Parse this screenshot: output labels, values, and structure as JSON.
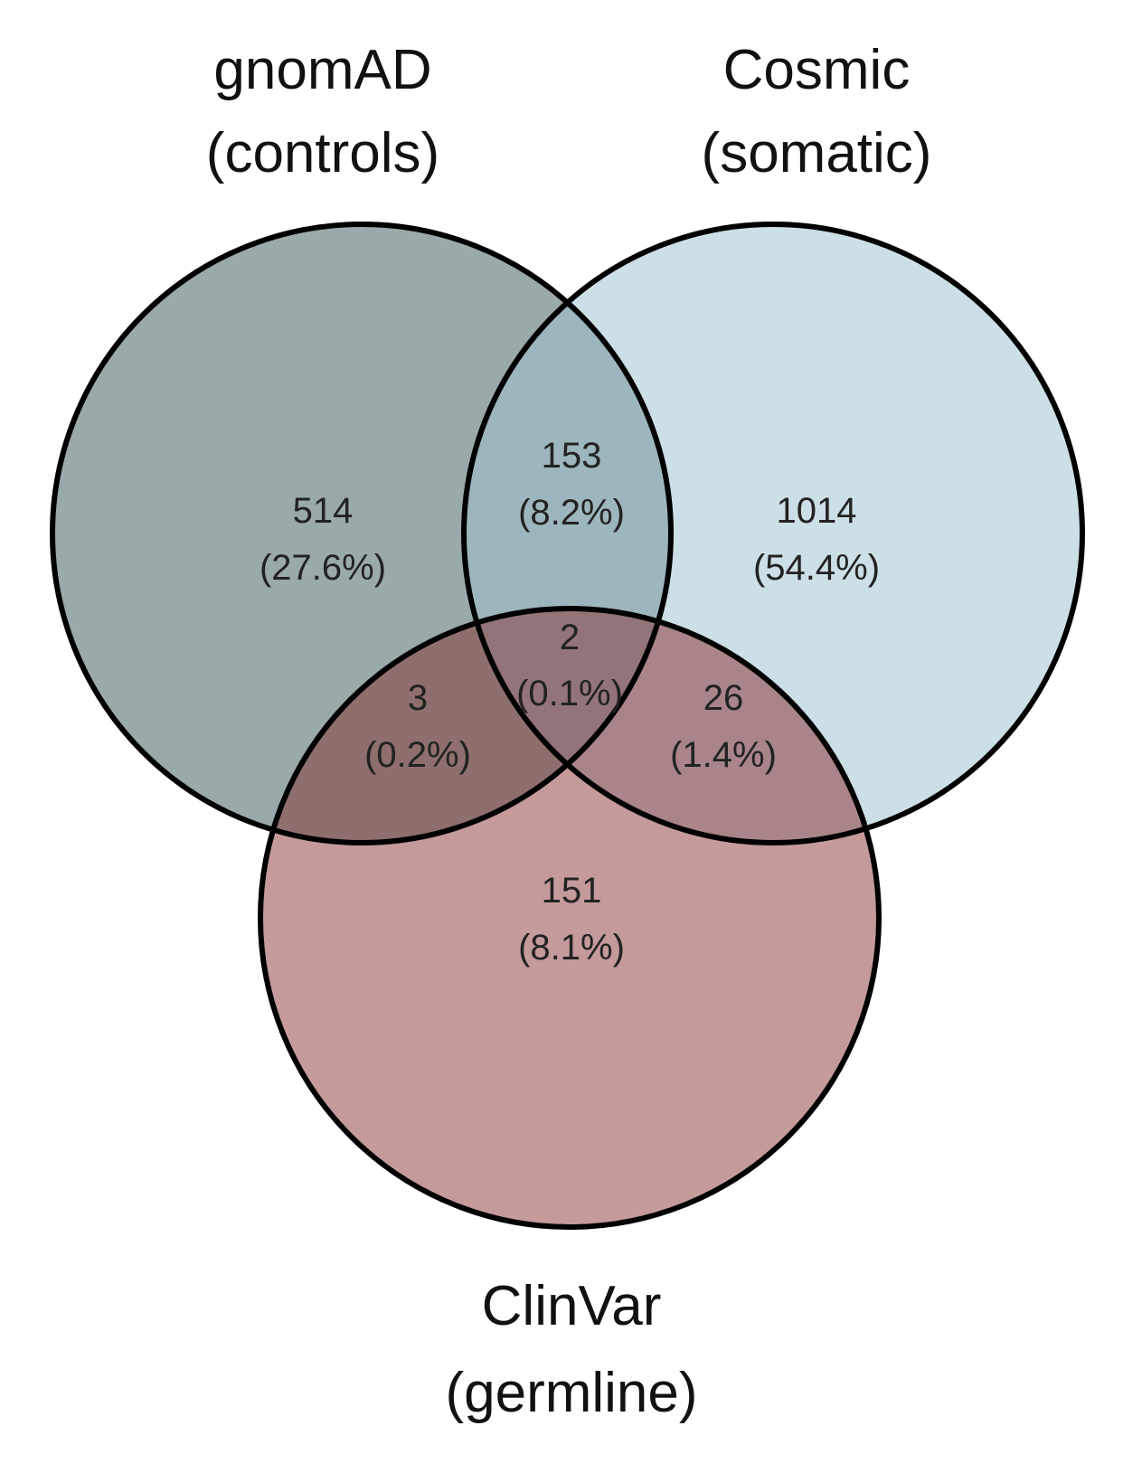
{
  "sets": {
    "gnomad": {
      "name": "gnomAD",
      "sub": "(controls)",
      "color": "#7f9494"
    },
    "cosmic": {
      "name": "Cosmic",
      "sub": "(somatic)",
      "color": "#c9dde6"
    },
    "clinvar": {
      "name": "ClinVar",
      "sub": "(germline)",
      "color": "#c49a9a"
    }
  },
  "regions": {
    "gnomad_only": {
      "count": "514",
      "pct": "(27.6%)"
    },
    "cosmic_only": {
      "count": "1014",
      "pct": "(54.4%)"
    },
    "clinvar_only": {
      "count": "151",
      "pct": "(8.1%)"
    },
    "gnomad_cosmic": {
      "count": "153",
      "pct": "(8.2%)"
    },
    "gnomad_clinvar": {
      "count": "3",
      "pct": "(0.2%)"
    },
    "cosmic_clinvar": {
      "count": "26",
      "pct": "(1.4%)"
    },
    "all_three": {
      "count": "2",
      "pct": "(0.1%)"
    }
  }
}
